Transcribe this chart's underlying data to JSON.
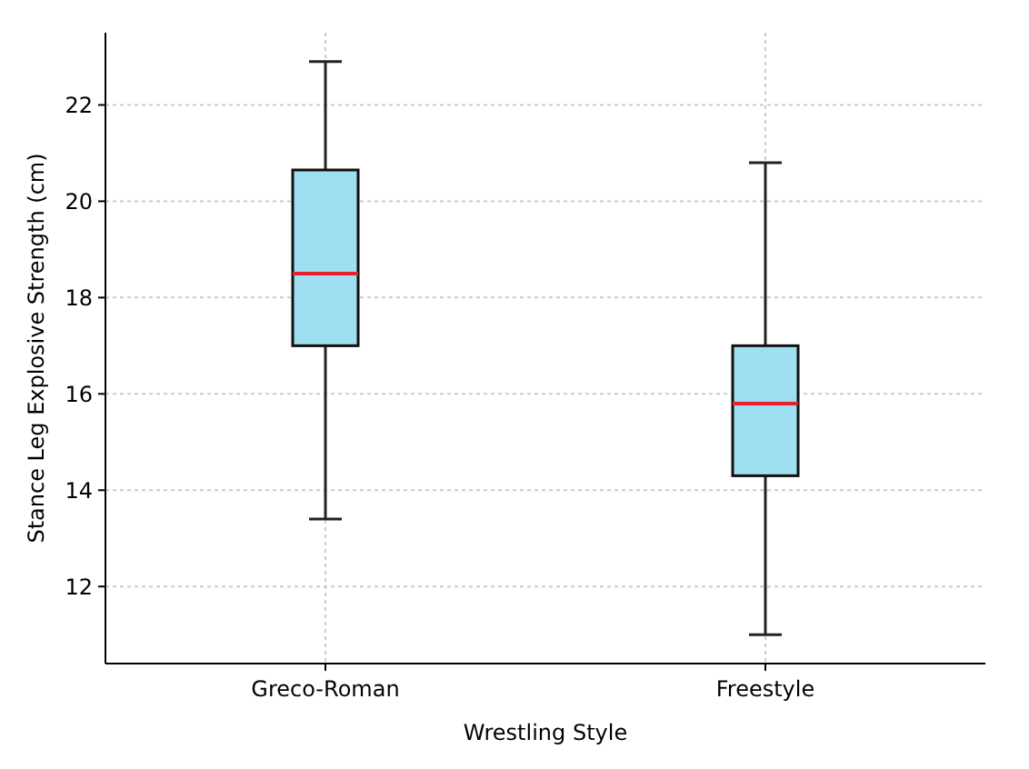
{
  "chart_data": {
    "type": "box",
    "xlabel": "Wrestling Style",
    "ylabel": "Stance Leg Explosive Strength (cm)",
    "categories": [
      "Greco-Roman",
      "Freestyle"
    ],
    "boxes": [
      {
        "low": 13.4,
        "q1": 17.0,
        "median": 18.5,
        "q3": 20.65,
        "high": 22.9
      },
      {
        "low": 11.0,
        "q1": 14.3,
        "median": 15.8,
        "q3": 17.0,
        "high": 20.8
      }
    ],
    "color": "#9ee0f2",
    "ylim": [
      10.4,
      23.5
    ],
    "yticks": [
      12,
      14,
      16,
      18,
      20,
      22
    ],
    "grid": true
  }
}
